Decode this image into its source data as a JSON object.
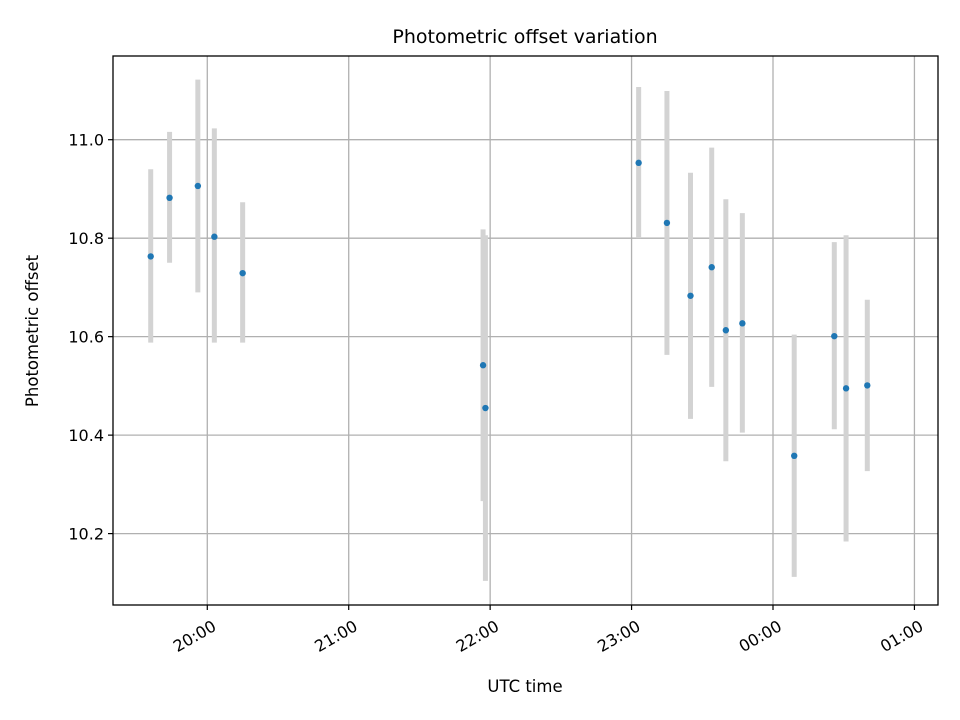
{
  "chart_data": {
    "type": "scatter",
    "title": "Photometric offset variation",
    "xlabel": "UTC time",
    "ylabel": "Photometric offset",
    "x_axis_kind": "time",
    "xlim": [
      "19:20",
      "01:10"
    ],
    "ylim": [
      10.055,
      11.17
    ],
    "grid": true,
    "xticks": [
      {
        "label": "20:00"
      },
      {
        "label": "21:00"
      },
      {
        "label": "22:00"
      },
      {
        "label": "23:00"
      },
      {
        "label": "00:00"
      },
      {
        "label": "01:00"
      }
    ],
    "yticks": [
      {
        "label": "10.2",
        "value": 10.2
      },
      {
        "label": "10.4",
        "value": 10.4
      },
      {
        "label": "10.6",
        "value": 10.6
      },
      {
        "label": "10.8",
        "value": 10.8
      },
      {
        "label": "11.0",
        "value": 11.0
      }
    ],
    "marker_color": "#1f77b4",
    "errorbar_color": "#d3d3d3",
    "series": [
      {
        "points": [
          {
            "x": "19:36",
            "y": 10.763,
            "ylow": 10.588,
            "yhigh": 10.94
          },
          {
            "x": "19:44",
            "y": 10.882,
            "ylow": 10.75,
            "yhigh": 11.016
          },
          {
            "x": "19:56",
            "y": 10.906,
            "ylow": 10.69,
            "yhigh": 11.122
          },
          {
            "x": "20:03",
            "y": 10.803,
            "ylow": 10.588,
            "yhigh": 11.023
          },
          {
            "x": "20:15",
            "y": 10.729,
            "ylow": 10.588,
            "yhigh": 10.873
          },
          {
            "x": "21:57",
            "y": 10.542,
            "ylow": 10.266,
            "yhigh": 10.818
          },
          {
            "x": "21:58",
            "y": 10.455,
            "ylow": 10.104,
            "yhigh": 10.806
          },
          {
            "x": "23:03",
            "y": 10.953,
            "ylow": 10.8,
            "yhigh": 11.107
          },
          {
            "x": "23:15",
            "y": 10.831,
            "ylow": 10.563,
            "yhigh": 11.099
          },
          {
            "x": "23:25",
            "y": 10.683,
            "ylow": 10.433,
            "yhigh": 10.933
          },
          {
            "x": "23:34",
            "y": 10.741,
            "ylow": 10.498,
            "yhigh": 10.984
          },
          {
            "x": "23:40",
            "y": 10.613,
            "ylow": 10.347,
            "yhigh": 10.879
          },
          {
            "x": "23:47",
            "y": 10.627,
            "ylow": 10.405,
            "yhigh": 10.851
          },
          {
            "x": "00:09",
            "y": 10.358,
            "ylow": 10.112,
            "yhigh": 10.604
          },
          {
            "x": "00:26",
            "y": 10.601,
            "ylow": 10.412,
            "yhigh": 10.792
          },
          {
            "x": "00:31",
            "y": 10.495,
            "ylow": 10.184,
            "yhigh": 10.806
          },
          {
            "x": "00:40",
            "y": 10.501,
            "ylow": 10.327,
            "yhigh": 10.675
          }
        ]
      }
    ]
  }
}
